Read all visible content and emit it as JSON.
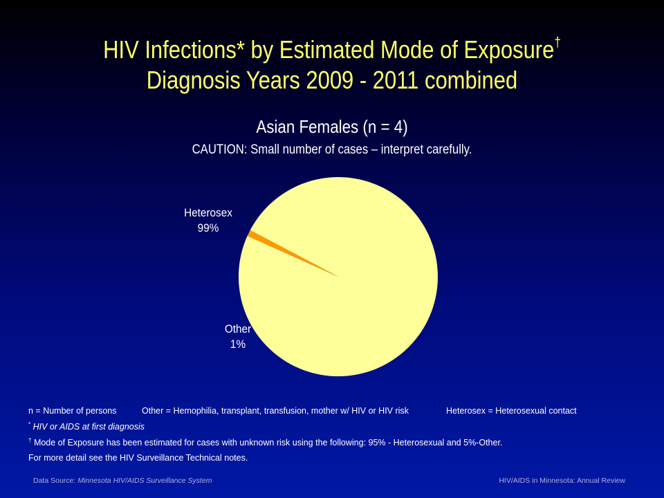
{
  "header": {
    "title_line1": "HIV Infections* by Estimated Mode of Exposure",
    "title_dagger": "†",
    "title_line2": "Diagnosis Years 2009 - 2011 combined"
  },
  "subtitle": "Asian  Females (n = 4)",
  "caution": "CAUTION: Small number of cases – interpret carefully.",
  "chart_data": {
    "type": "pie",
    "slices": [
      {
        "label": "Heterosex",
        "value": 99,
        "value_label": "99%",
        "color": "#ffff99"
      },
      {
        "label": "Other",
        "value": 1,
        "value_label": "1%",
        "color": "#ff9900"
      }
    ]
  },
  "legend": {
    "n_def": "n = Number of persons",
    "other_def": "Other = Hemophilia, transplant, transfusion, mother w/ HIV or HIV risk",
    "heterosex_def": "Heterosex = Heterosexual contact"
  },
  "notes": {
    "asterisk_mark": "*",
    "asterisk_text": "HIV or AIDS at first diagnosis",
    "dagger_mark": "†",
    "dagger_text": "Mode of Exposure has been estimated for cases with unknown risk using the following: 95% - Heterosexual and 5%-Other.",
    "more_detail": "For more detail see the HIV Surveillance Technical notes."
  },
  "footer": {
    "source_prefix": "Data Source: ",
    "source_name": "Minnesota HIV/AIDS Surveillance  System",
    "right_text": "HIV/AIDS in Minnesota: Annual Review"
  },
  "colors": {
    "title": "#ffff66",
    "pie_major": "#ffff99",
    "pie_minor": "#ff9900"
  }
}
